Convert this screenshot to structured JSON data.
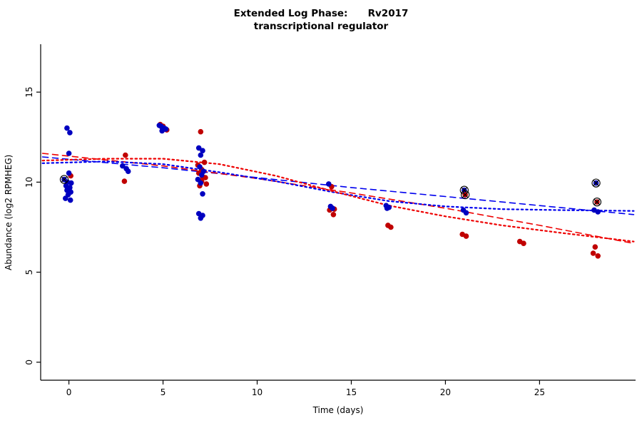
{
  "chart_data": {
    "type": "scatter",
    "title": "Extended Log Phase:      Rv2017",
    "subtitle": "transcriptional regulator",
    "xlabel": "Time  (days)",
    "ylabel": "Abundance  (log2 RPMHEG)",
    "xlim": [
      -1.5,
      30.1
    ],
    "ylim": [
      -1.0,
      17.66
    ],
    "xticks": [
      0,
      5,
      10,
      15,
      20,
      25
    ],
    "yticks": [
      0,
      5,
      10,
      15
    ],
    "grid": false,
    "legend": "none",
    "colors": {
      "red_points": "#C00000",
      "blue_points": "#0000C0",
      "red_line": "#EE0000",
      "blue_line": "#0000EE",
      "outlier_marker": "#000000",
      "axis": "#000000"
    },
    "series": [
      {
        "name": "red-replicate-points",
        "color": "#C00000",
        "points": [
          [
            0.1,
            10.35
          ],
          [
            -0.05,
            9.6
          ],
          [
            3.0,
            11.5
          ],
          [
            2.95,
            10.05
          ],
          [
            4.85,
            13.2
          ],
          [
            4.95,
            13.05
          ],
          [
            5.1,
            12.95
          ],
          [
            5.2,
            12.9
          ],
          [
            5.0,
            13.1
          ],
          [
            7.0,
            12.8
          ],
          [
            7.2,
            11.1
          ],
          [
            6.85,
            10.95
          ],
          [
            7.05,
            10.7
          ],
          [
            6.9,
            10.5
          ],
          [
            7.1,
            10.3
          ],
          [
            7.25,
            10.25
          ],
          [
            7.05,
            10.05
          ],
          [
            7.3,
            9.9
          ],
          [
            6.95,
            9.8
          ],
          [
            13.95,
            9.75
          ],
          [
            14.1,
            8.5
          ],
          [
            13.85,
            8.45
          ],
          [
            14.05,
            8.2
          ],
          [
            16.95,
            7.6
          ],
          [
            17.1,
            7.5
          ],
          [
            20.9,
            7.1
          ],
          [
            21.1,
            7.0
          ],
          [
            23.95,
            6.7
          ],
          [
            24.15,
            6.6
          ],
          [
            27.95,
            6.4
          ],
          [
            27.85,
            6.05
          ],
          [
            28.1,
            5.9
          ]
        ]
      },
      {
        "name": "blue-replicate-points",
        "color": "#0000C0",
        "points": [
          [
            -0.1,
            13.0
          ],
          [
            0.05,
            12.75
          ],
          [
            0.0,
            11.6
          ],
          [
            0.0,
            10.5
          ],
          [
            -0.08,
            10.0
          ],
          [
            0.12,
            9.95
          ],
          [
            -0.15,
            9.8
          ],
          [
            0.05,
            9.7
          ],
          [
            -0.1,
            9.55
          ],
          [
            0.1,
            9.45
          ],
          [
            -0.04,
            9.3
          ],
          [
            -0.18,
            9.1
          ],
          [
            0.08,
            9.0
          ],
          [
            2.85,
            10.9
          ],
          [
            3.05,
            10.75
          ],
          [
            3.15,
            10.6
          ],
          [
            4.8,
            13.15
          ],
          [
            4.9,
            13.1
          ],
          [
            5.05,
            13.0
          ],
          [
            5.15,
            12.95
          ],
          [
            4.95,
            12.85
          ],
          [
            6.9,
            11.9
          ],
          [
            7.1,
            11.75
          ],
          [
            7.0,
            11.5
          ],
          [
            6.95,
            10.85
          ],
          [
            7.15,
            10.6
          ],
          [
            7.05,
            10.4
          ],
          [
            6.85,
            10.15
          ],
          [
            7.0,
            9.95
          ],
          [
            7.1,
            9.35
          ],
          [
            6.9,
            8.25
          ],
          [
            7.1,
            8.15
          ],
          [
            7.0,
            8.0
          ],
          [
            13.8,
            9.9
          ],
          [
            13.9,
            8.65
          ],
          [
            14.0,
            8.55
          ],
          [
            16.85,
            8.7
          ],
          [
            17.0,
            8.6
          ],
          [
            16.9,
            8.55
          ],
          [
            20.95,
            8.45
          ],
          [
            21.1,
            8.3
          ],
          [
            27.9,
            8.45
          ],
          [
            28.1,
            8.35
          ]
        ]
      }
    ],
    "outliers": [
      {
        "x": -0.25,
        "y": 10.15,
        "color": "#0000C0"
      },
      {
        "x": 21.0,
        "y": 9.55,
        "color": "#0000C0"
      },
      {
        "x": 21.05,
        "y": 9.3,
        "color": "#C00000"
      },
      {
        "x": 28.0,
        "y": 9.95,
        "color": "#0000C0"
      },
      {
        "x": 28.05,
        "y": 8.9,
        "color": "#C00000"
      }
    ],
    "curves": [
      {
        "name": "blue-dashed-fit",
        "color": "#0000EE",
        "style": "dashed",
        "points": [
          [
            -1.4,
            11.4
          ],
          [
            5,
            10.8
          ],
          [
            10,
            10.25
          ],
          [
            15,
            9.7
          ],
          [
            20,
            9.2
          ],
          [
            25,
            8.7
          ],
          [
            30,
            8.2
          ]
        ]
      },
      {
        "name": "red-dashed-fit",
        "color": "#EE0000",
        "style": "dashed",
        "points": [
          [
            -1.4,
            11.6
          ],
          [
            5,
            10.9
          ],
          [
            10,
            10.2
          ],
          [
            15,
            9.4
          ],
          [
            20,
            8.55
          ],
          [
            25,
            7.6
          ],
          [
            30,
            6.6
          ]
        ]
      },
      {
        "name": "blue-dotted-fit",
        "color": "#0000EE",
        "style": "dotted",
        "points": [
          [
            -1.4,
            11.05
          ],
          [
            2,
            11.15
          ],
          [
            5,
            11.0
          ],
          [
            8,
            10.55
          ],
          [
            11,
            10.05
          ],
          [
            14,
            9.45
          ],
          [
            17,
            8.95
          ],
          [
            20,
            8.65
          ],
          [
            23,
            8.5
          ],
          [
            26,
            8.45
          ],
          [
            30,
            8.4
          ]
        ]
      },
      {
        "name": "red-dotted-fit",
        "color": "#EE0000",
        "style": "dotted",
        "points": [
          [
            -1.4,
            11.2
          ],
          [
            2,
            11.3
          ],
          [
            5,
            11.3
          ],
          [
            8,
            11.0
          ],
          [
            11,
            10.35
          ],
          [
            14,
            9.5
          ],
          [
            17,
            8.7
          ],
          [
            20,
            8.1
          ],
          [
            23,
            7.6
          ],
          [
            26,
            7.2
          ],
          [
            30,
            6.7
          ]
        ]
      }
    ]
  }
}
